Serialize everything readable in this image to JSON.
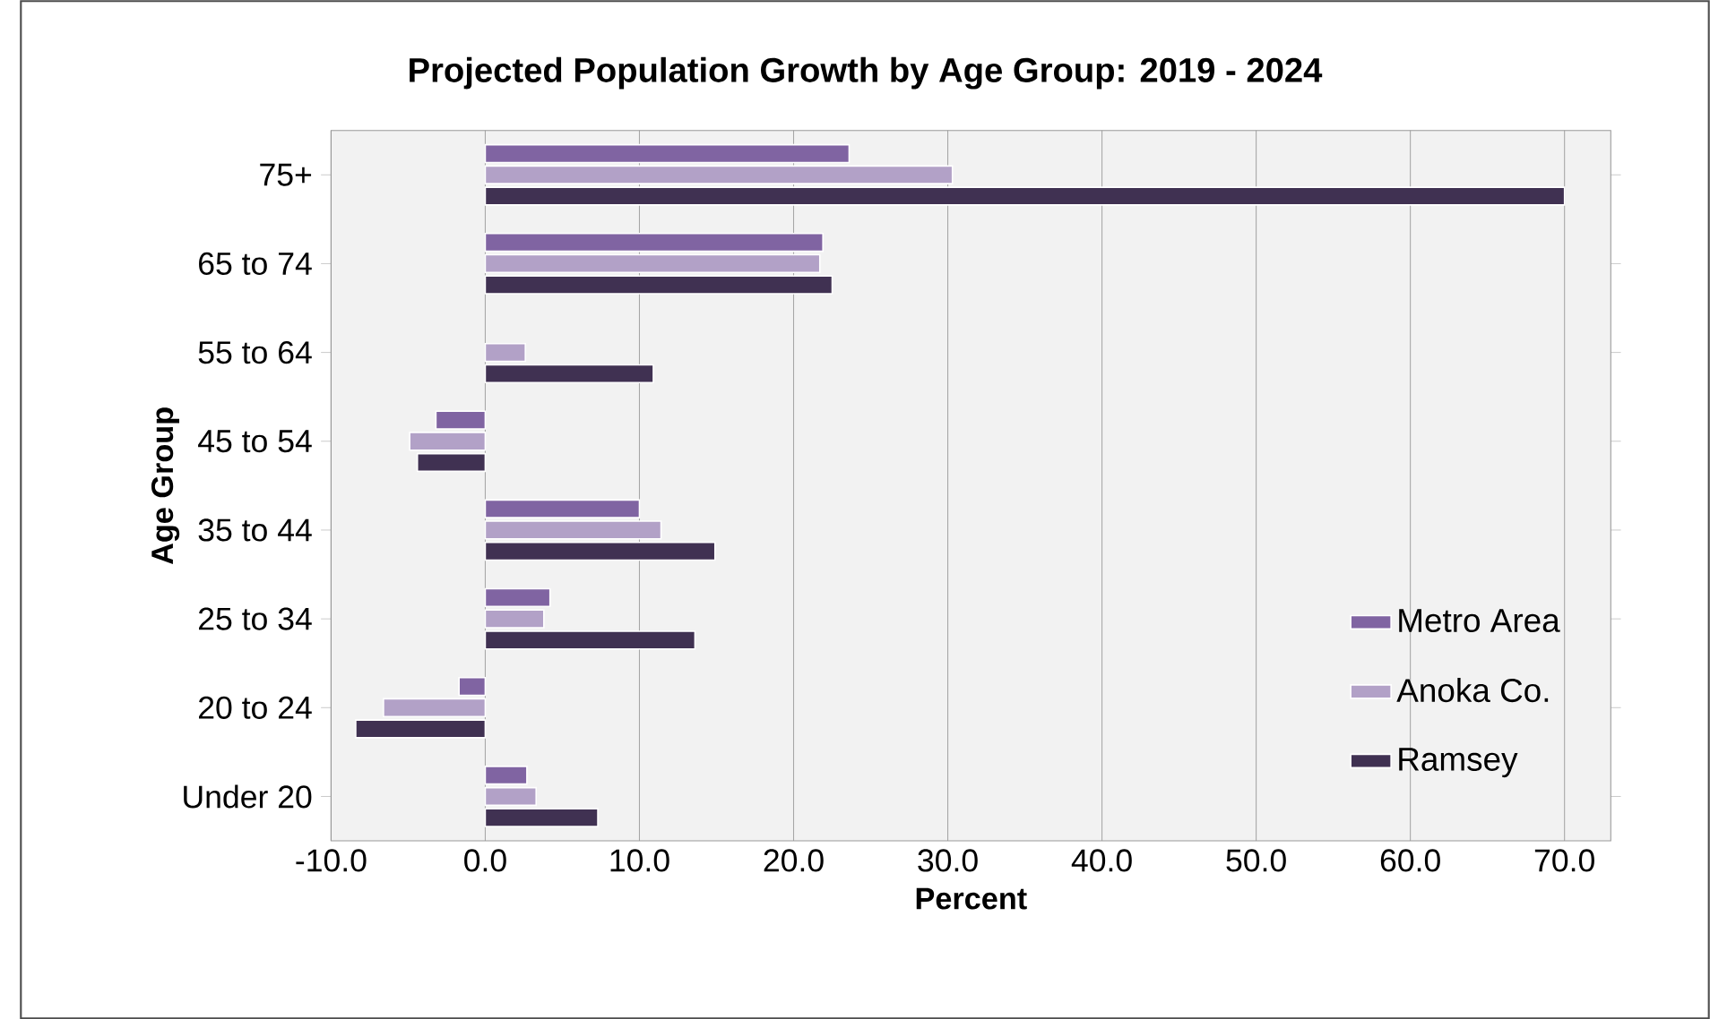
{
  "chart_data": {
    "type": "bar",
    "orientation": "horizontal",
    "title": "Projected Population Growth by Age Group:  2019 - 2024",
    "xlabel": "Percent",
    "ylabel": "Age Group",
    "categories": [
      "75+",
      "65 to 74",
      "55 to 64",
      "45 to 54",
      "35 to 44",
      "25 to 34",
      "20 to 24",
      "Under 20"
    ],
    "series": [
      {
        "name": "Metro Area",
        "color": "#8064a2",
        "values": [
          23.6,
          21.9,
          null,
          -3.2,
          10.0,
          4.2,
          -1.7,
          2.7
        ]
      },
      {
        "name": "Anoka Co.",
        "color": "#b2a1c7",
        "values": [
          30.3,
          21.7,
          2.6,
          -4.9,
          11.4,
          3.8,
          -6.6,
          3.3
        ]
      },
      {
        "name": "Ramsey",
        "color": "#403152",
        "values": [
          70.0,
          22.5,
          10.9,
          -4.4,
          14.9,
          13.6,
          -8.4,
          7.3
        ]
      }
    ],
    "xlim": [
      -10,
      73
    ],
    "xticks": [
      {
        "value": -10,
        "label": "-10.0"
      },
      {
        "value": 0,
        "label": "0.0"
      },
      {
        "value": 10,
        "label": "10.0"
      },
      {
        "value": 20,
        "label": "20.0"
      },
      {
        "value": 30,
        "label": "30.0"
      },
      {
        "value": 40,
        "label": "40.0"
      },
      {
        "value": 50,
        "label": "50.0"
      },
      {
        "value": 60,
        "label": "60.0"
      },
      {
        "value": 70,
        "label": "70.0"
      }
    ],
    "grid": "x",
    "legend": "right"
  }
}
